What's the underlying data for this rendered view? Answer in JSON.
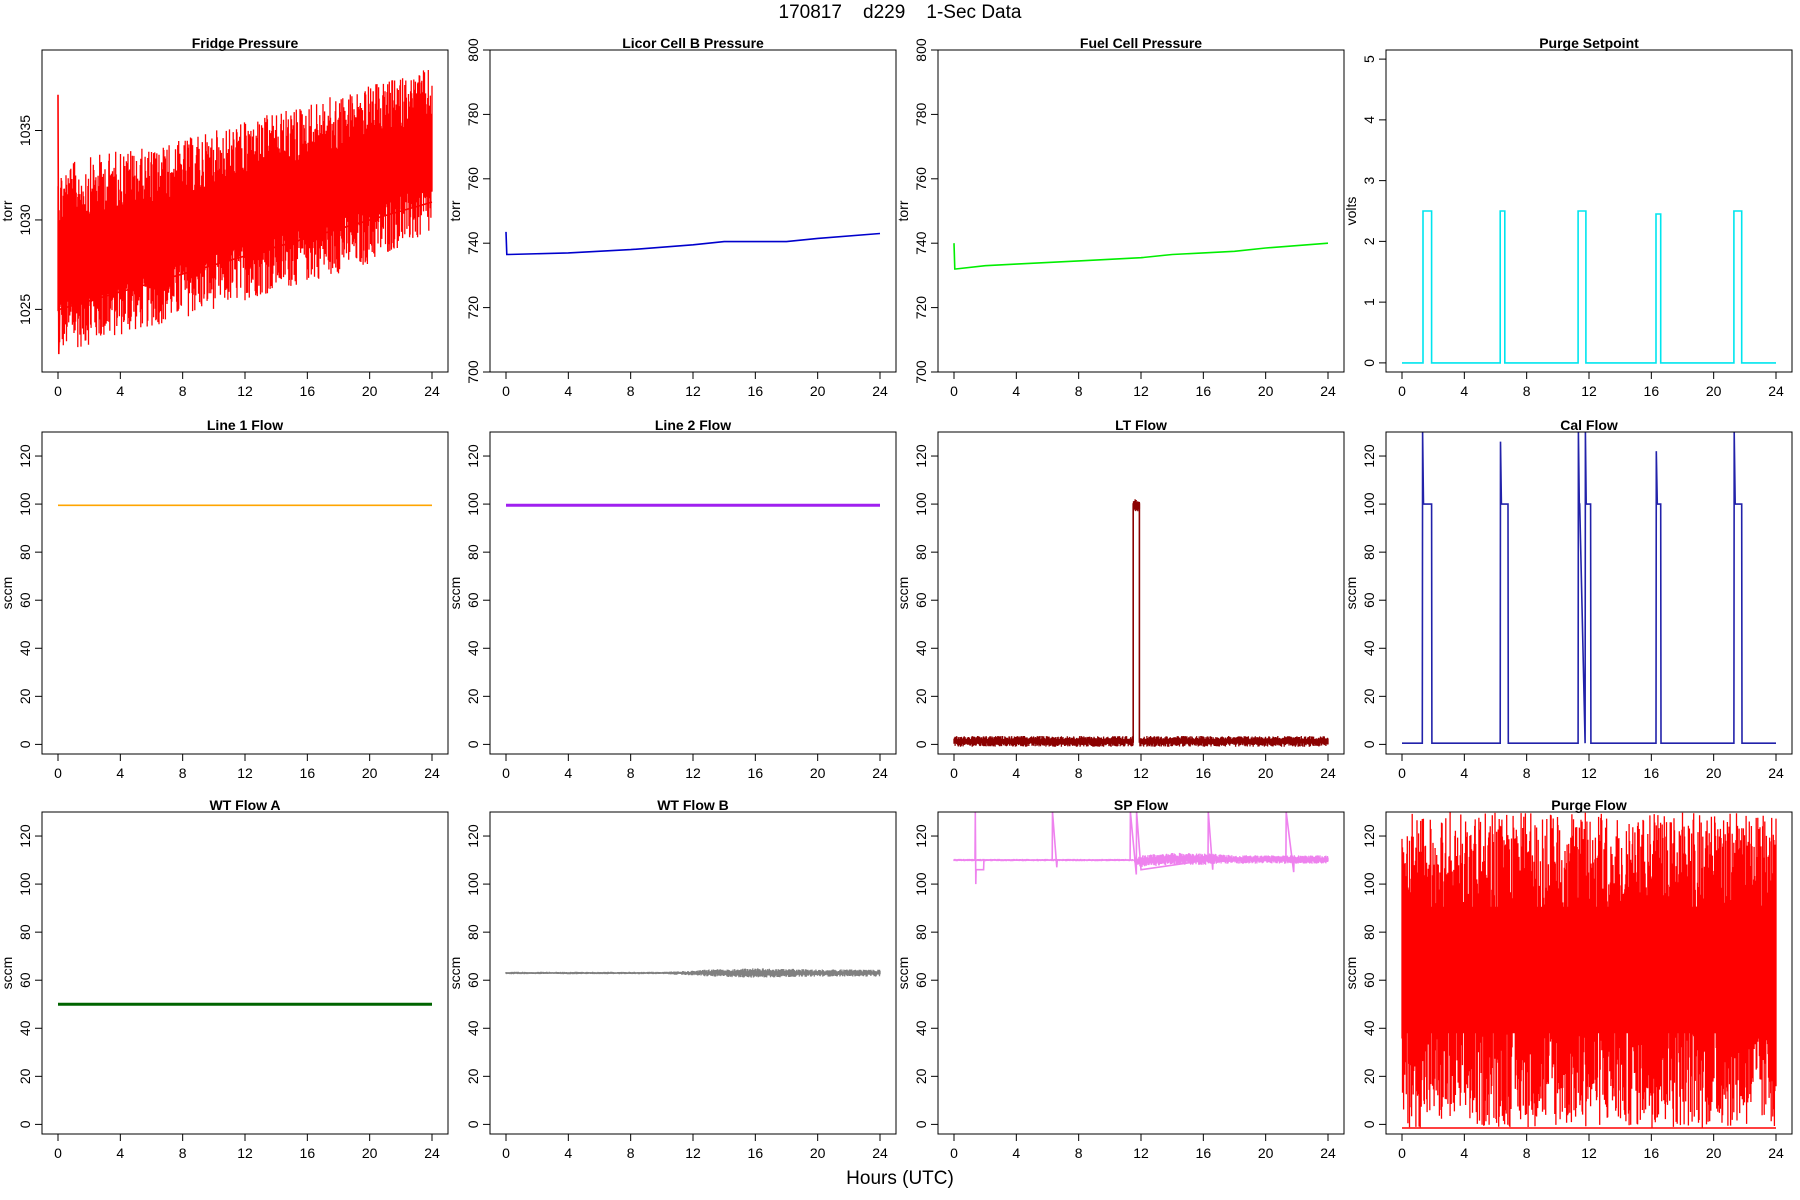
{
  "figure": {
    "title": "170817    d229    1-Sec Data",
    "xlabel": "Hours (UTC)"
  },
  "chart_data": [
    {
      "type": "line",
      "title": "Fridge Pressure",
      "ylabel": "torr",
      "color": "#ff0000",
      "xlim": [
        0,
        24
      ],
      "ylim": [
        1021.5,
        1039.5
      ],
      "xticks": [
        0,
        4,
        8,
        12,
        16,
        20,
        24
      ],
      "yticks": [
        1025,
        1030,
        1035
      ],
      "noise_band": {
        "x": [
          0,
          2,
          4,
          6,
          8,
          10,
          12,
          14,
          16,
          18,
          20,
          22,
          24
        ],
        "low": [
          1022.5,
          1023.0,
          1023.5,
          1024.0,
          1024.5,
          1025.0,
          1025.5,
          1026.0,
          1026.5,
          1027.0,
          1027.5,
          1028.5,
          1029.0
        ],
        "high": [
          1033.0,
          1033.5,
          1034.0,
          1034.0,
          1034.5,
          1035.0,
          1035.5,
          1036.0,
          1036.5,
          1037.0,
          1037.5,
          1038.0,
          1038.5
        ]
      },
      "series": [
        {
          "x": [
            0,
            0.05,
            0.1,
            24
          ],
          "y": [
            1037.0,
            1022.5,
            1025.0,
            1031.0
          ]
        }
      ]
    },
    {
      "type": "line",
      "title": "Licor Cell B Pressure",
      "ylabel": "torr",
      "color": "#0000cc",
      "xlim": [
        0,
        24
      ],
      "ylim": [
        700,
        800
      ],
      "xticks": [
        0,
        4,
        8,
        12,
        16,
        20,
        24
      ],
      "yticks": [
        700,
        720,
        740,
        760,
        780,
        800
      ],
      "series": [
        {
          "x": [
            0,
            0.05,
            0.1,
            4,
            8,
            12,
            14,
            16,
            18,
            20,
            24
          ],
          "y": [
            743.5,
            736.5,
            736.5,
            737.0,
            738.0,
            739.5,
            740.5,
            740.5,
            740.5,
            741.5,
            743.0
          ]
        }
      ]
    },
    {
      "type": "line",
      "title": "Fuel Cell Pressure",
      "ylabel": "torr",
      "color": "#00ee00",
      "xlim": [
        0,
        24
      ],
      "ylim": [
        700,
        800
      ],
      "xticks": [
        0,
        4,
        8,
        12,
        16,
        20,
        24
      ],
      "yticks": [
        700,
        720,
        740,
        760,
        780,
        800
      ],
      "series": [
        {
          "x": [
            0,
            0.05,
            0.1,
            2,
            4,
            8,
            12,
            14,
            16,
            18,
            20,
            24
          ],
          "y": [
            740.0,
            732.0,
            732.0,
            733.0,
            733.5,
            734.5,
            735.5,
            736.5,
            737.0,
            737.5,
            738.5,
            740.0
          ]
        }
      ]
    },
    {
      "type": "line",
      "title": "Purge Setpoint",
      "ylabel": "volts",
      "color": "#00e5ee",
      "xlim": [
        0,
        24
      ],
      "ylim": [
        -0.15,
        5.15
      ],
      "xticks": [
        0,
        4,
        8,
        12,
        16,
        20,
        24
      ],
      "yticks": [
        0,
        1,
        2,
        3,
        4,
        5
      ],
      "series": [
        {
          "x": [
            0,
            1.35,
            1.35,
            1.9,
            1.9,
            6.3,
            6.3,
            6.6,
            6.6,
            11.3,
            11.3,
            11.8,
            11.8,
            16.3,
            16.3,
            16.6,
            16.6,
            21.3,
            21.3,
            21.8,
            21.8,
            24
          ],
          "y": [
            0,
            0,
            2.5,
            2.5,
            0,
            0,
            2.5,
            2.5,
            0,
            0,
            2.5,
            2.5,
            0,
            0,
            2.45,
            2.45,
            0,
            0,
            2.5,
            2.5,
            0,
            0
          ]
        }
      ]
    },
    {
      "type": "line",
      "title": "Line 1 Flow",
      "ylabel": "sccm",
      "color": "#ffa500",
      "xlim": [
        0,
        24
      ],
      "ylim": [
        -4,
        130
      ],
      "xticks": [
        0,
        4,
        8,
        12,
        16,
        20,
        24
      ],
      "yticks": [
        0,
        20,
        40,
        60,
        80,
        100,
        120
      ],
      "series": [
        {
          "x": [
            0,
            24
          ],
          "y": [
            99.5,
            99.5
          ]
        }
      ]
    },
    {
      "type": "line",
      "title": "Line 2 Flow",
      "ylabel": "sccm",
      "color": "#a020f0",
      "xlim": [
        0,
        24
      ],
      "ylim": [
        -4,
        130
      ],
      "xticks": [
        0,
        4,
        8,
        12,
        16,
        20,
        24
      ],
      "yticks": [
        0,
        20,
        40,
        60,
        80,
        100,
        120
      ],
      "series": [
        {
          "x": [
            0,
            24
          ],
          "y": [
            99.5,
            99.5
          ]
        }
      ]
    },
    {
      "type": "line",
      "title": "LT Flow",
      "ylabel": "sccm",
      "color": "#8b0000",
      "xlim": [
        0,
        24
      ],
      "ylim": [
        -4,
        130
      ],
      "xticks": [
        0,
        4,
        8,
        12,
        16,
        20,
        24
      ],
      "yticks": [
        0,
        20,
        40,
        60,
        80,
        100,
        120
      ],
      "noise_band": {
        "x": [
          0,
          11.5,
          11.5,
          11.9,
          11.9,
          24
        ],
        "low": [
          -1,
          -1,
          97,
          97,
          -1,
          -1
        ],
        "high": [
          3.5,
          3.5,
          102,
          102,
          3.5,
          3.5
        ]
      },
      "series": [
        {
          "x": [
            0,
            11.5,
            11.5,
            11.9,
            11.9,
            24
          ],
          "y": [
            1,
            1,
            100,
            100,
            1,
            1
          ]
        }
      ]
    },
    {
      "type": "line",
      "title": "Cal Flow",
      "ylabel": "sccm",
      "color": "#2222aa",
      "xlim": [
        0,
        24
      ],
      "ylim": [
        -4,
        130
      ],
      "xticks": [
        0,
        4,
        8,
        12,
        16,
        20,
        24
      ],
      "yticks": [
        0,
        20,
        40,
        60,
        80,
        100,
        120
      ],
      "series": [
        {
          "x": [
            0,
            1.3,
            1.32,
            1.38,
            1.4,
            1.9,
            1.92,
            6.3,
            6.32,
            6.38,
            6.4,
            6.8,
            6.82,
            11.3,
            11.32,
            11.38,
            11.4,
            11.75,
            11.77,
            11.82,
            11.84,
            12.1,
            12.12,
            16.3,
            16.32,
            16.38,
            16.4,
            16.6,
            16.62,
            21.3,
            21.32,
            21.38,
            21.4,
            21.8,
            21.82,
            24
          ],
          "y": [
            0.5,
            0.5,
            130,
            100,
            100,
            100,
            0.5,
            0.5,
            126,
            100,
            100,
            100,
            0.5,
            0.5,
            130,
            100,
            100,
            0.5,
            130,
            100,
            100,
            100,
            0.5,
            0.5,
            122,
            100,
            100,
            100,
            0.5,
            0.5,
            130,
            100,
            100,
            100,
            0.5,
            0.5
          ]
        }
      ]
    },
    {
      "type": "line",
      "title": "WT Flow A",
      "ylabel": "sccm",
      "color": "#006400",
      "xlim": [
        0,
        24
      ],
      "ylim": [
        -4,
        130
      ],
      "xticks": [
        0,
        4,
        8,
        12,
        16,
        20,
        24
      ],
      "yticks": [
        0,
        20,
        40,
        60,
        80,
        100,
        120
      ],
      "series": [
        {
          "x": [
            0,
            24
          ],
          "y": [
            50,
            50
          ]
        }
      ]
    },
    {
      "type": "line",
      "title": "WT Flow B",
      "ylabel": "sccm",
      "color": "#808080",
      "xlim": [
        0,
        24
      ],
      "ylim": [
        -4,
        130
      ],
      "xticks": [
        0,
        4,
        8,
        12,
        16,
        20,
        24
      ],
      "yticks": [
        0,
        20,
        40,
        60,
        80,
        100,
        120
      ],
      "noise_band": {
        "x": [
          0,
          10,
          12,
          13,
          16,
          20,
          24
        ],
        "low": [
          62.5,
          62.5,
          62,
          61.5,
          61,
          61.5,
          61.5
        ],
        "high": [
          63.5,
          63.5,
          64,
          64.5,
          65,
          64.5,
          64.5
        ]
      },
      "series": [
        {
          "x": [
            0,
            24
          ],
          "y": [
            63,
            63
          ]
        }
      ]
    },
    {
      "type": "line",
      "title": "SP Flow",
      "ylabel": "sccm",
      "color": "#ee82ee",
      "xlim": [
        0,
        24
      ],
      "ylim": [
        -4,
        130
      ],
      "xticks": [
        0,
        4,
        8,
        12,
        16,
        20,
        24
      ],
      "yticks": [
        0,
        20,
        40,
        60,
        80,
        100,
        120
      ],
      "noise_band": {
        "x": [
          0,
          11.5,
          12,
          14,
          16,
          18,
          20,
          22,
          24
        ],
        "low": [
          109.5,
          109.5,
          107,
          108,
          108,
          108.5,
          108.5,
          108.5,
          108.5
        ],
        "high": [
          110.5,
          110.5,
          112,
          113,
          113,
          112,
          112,
          112,
          112
        ]
      },
      "series": [
        {
          "x": [
            0,
            1.35,
            1.37,
            1.4,
            1.42,
            1.9,
            1.92,
            6.3,
            6.32,
            6.6,
            6.62,
            11.3,
            11.32,
            11.7,
            11.72,
            12.0,
            16.3,
            16.32,
            16.6,
            16.62,
            21.3,
            21.32,
            21.8,
            21.82,
            24
          ],
          "y": [
            110,
            110,
            130,
            100,
            106,
            106,
            110,
            110,
            130,
            107,
            110,
            110,
            130,
            104,
            130,
            106,
            110,
            130,
            106,
            110,
            110,
            130,
            105,
            110,
            110
          ]
        }
      ]
    },
    {
      "type": "line",
      "title": "Purge Flow",
      "ylabel": "sccm",
      "color": "#ff0000",
      "xlim": [
        0,
        24
      ],
      "ylim": [
        -4,
        130
      ],
      "xticks": [
        0,
        4,
        8,
        12,
        16,
        20,
        24
      ],
      "yticks": [
        0,
        20,
        40,
        60,
        80,
        100,
        120
      ],
      "noise_band": {
        "x": [
          0,
          24
        ],
        "low": [
          -1.5,
          -1.5
        ],
        "high": [
          130,
          130
        ]
      },
      "series": [
        {
          "x": [
            0,
            24
          ],
          "y": [
            -1.5,
            -1.5
          ]
        }
      ]
    }
  ]
}
